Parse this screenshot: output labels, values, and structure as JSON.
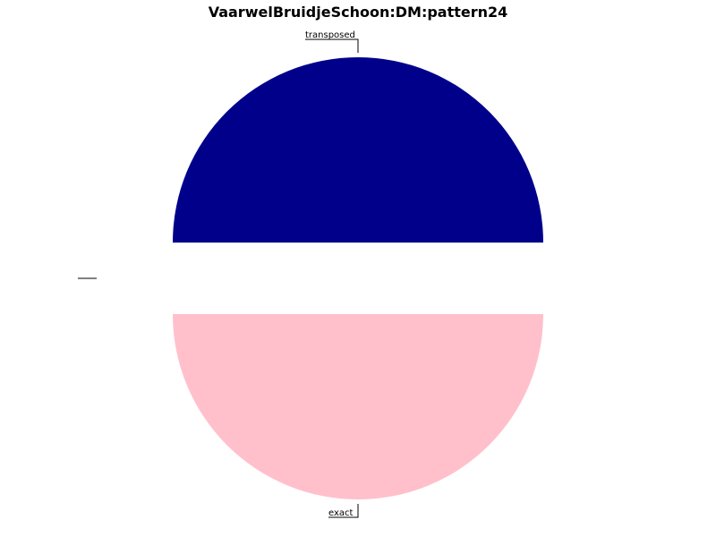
{
  "chart_data": {
    "type": "pie",
    "title": "VaarwelBruidjeSchoon:DM:pattern24",
    "slices": [
      {
        "label": "transposed",
        "value": 50,
        "color": "#00008b"
      },
      {
        "label": "",
        "value": 0,
        "color": "#ffffff"
      },
      {
        "label": "exact",
        "value": 50,
        "color": "#ffc0cb"
      }
    ],
    "legend": "none"
  }
}
